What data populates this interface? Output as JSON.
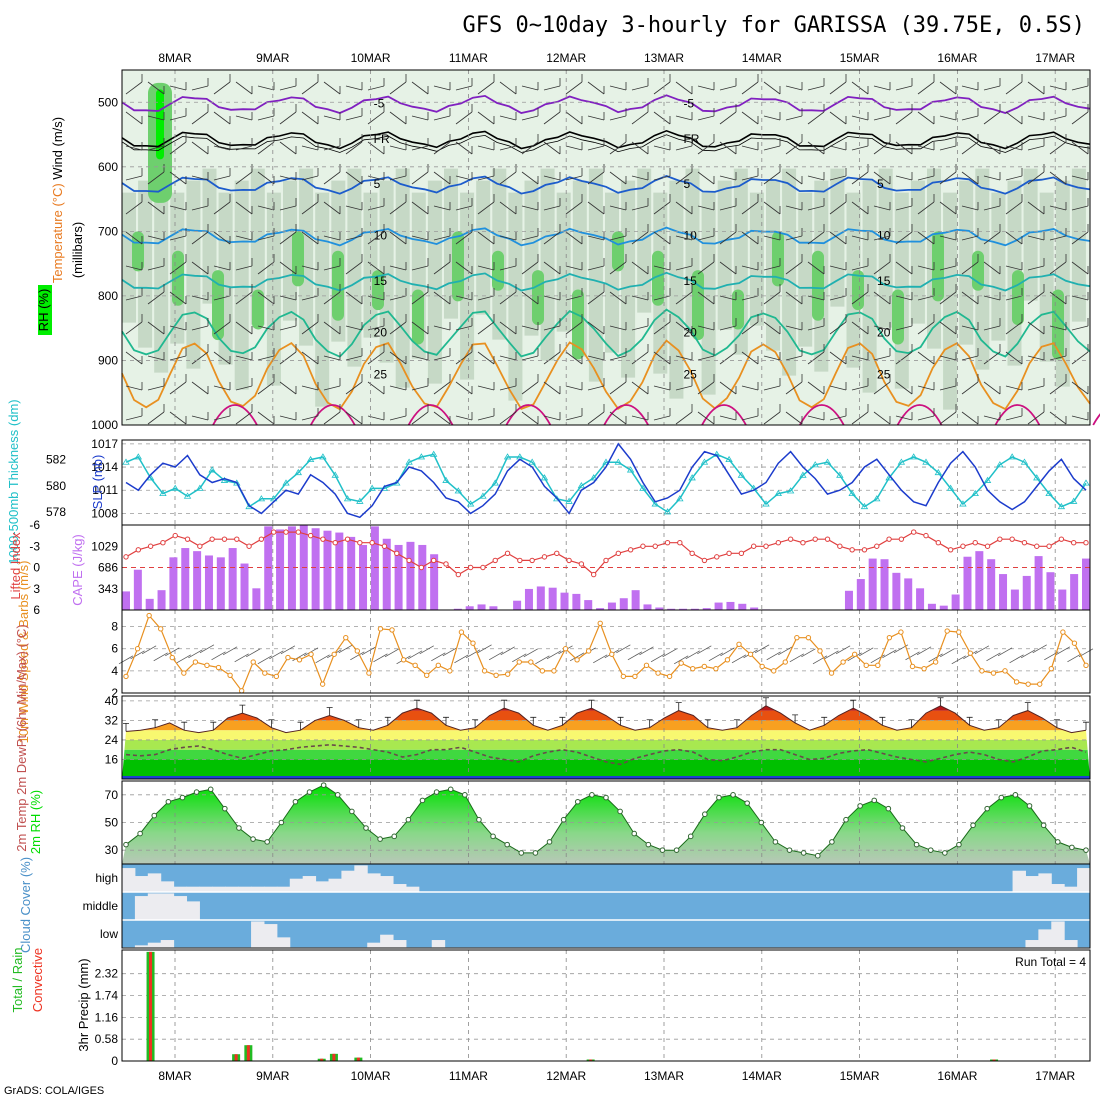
{
  "header": {
    "title": "GFS 0~10day 3-hourly for GARISSA (39.75E, 0.5S)",
    "footer": "GrADS: COLA/IGES"
  },
  "colors": {
    "rh_light": "#e6f2e6",
    "rh_mid": "#c2d6c2",
    "rh_dark": "#6ecf6e",
    "rh_max": "#00ee00",
    "thickness": "#20c0c8",
    "slp": "#1c3ccc",
    "lifted_index": "#e04040",
    "cape": "#c070f0",
    "wind10m": "#e89020",
    "rh2m": "#00dd00",
    "cloud": "#6aacdc",
    "rain_total": "#22bb22",
    "rain_conv": "#ee3322",
    "temp_iso_neg": "#8020c0",
    "temp_iso_0": "#000000",
    "temp_iso_cool": "#1c5ccc",
    "temp_iso_mid": "#20b0b0",
    "temp_iso_warm": "#e89020",
    "temp_iso_hot": "#cc1080"
  },
  "chart_data": [
    {
      "id": "upper_air",
      "type": "heatmap",
      "ylabel_parts": [
        "RH (%)",
        "Temperature (°C)",
        "Wind (m/s)"
      ],
      "ylabel2": "(millibars)",
      "x_top": [
        "8MAR",
        "9MAR",
        "10MAR",
        "11MAR",
        "12MAR",
        "13MAR",
        "14MAR",
        "15MAR",
        "16MAR",
        "17MAR"
      ],
      "y_ticks": [
        "500",
        "600",
        "700",
        "800",
        "900",
        "1000"
      ],
      "ylim": [
        1000,
        450
      ],
      "isotherms": [
        {
          "label": "-5",
          "pressure": 500
        },
        {
          "label": "FR",
          "pressure": 555
        },
        {
          "label": "5",
          "pressure": 625
        },
        {
          "label": "10",
          "pressure": 705
        },
        {
          "label": "15",
          "pressure": 775
        },
        {
          "label": "20",
          "pressure": 855
        },
        {
          "label": "25",
          "pressure": 920
        }
      ]
    },
    {
      "id": "thickness_slp",
      "type": "line",
      "ylabel_left": "1000-500mb Thickness (dm)",
      "ylabel_right": "SLP (mb)",
      "left_ticks": [
        "582",
        "580",
        "578"
      ],
      "right_ticks": [
        "1017",
        "1014",
        "1011",
        "1008"
      ],
      "left_range": [
        577,
        583.5
      ],
      "right_range": [
        1006.5,
        1017.5
      ],
      "series": [
        {
          "name": "1000-500mb Thickness (dm)",
          "values": [
            581.8,
            582.2,
            580.6,
            579.4,
            579.8,
            579.2,
            579.8,
            581.2,
            580.4,
            580.2,
            578.4,
            579.0,
            579.0,
            580.2,
            581.0,
            582.0,
            582.2,
            580.8,
            579.0,
            578.8,
            579.8,
            579.8,
            580.2,
            581.8,
            582.2,
            582.4,
            580.4,
            579.6,
            578.6,
            579.2,
            580.2,
            582.2,
            582.2,
            581.8,
            580.6,
            579.0,
            578.8,
            580.0,
            580.6,
            581.8,
            581.8,
            581.2,
            579.8,
            578.6,
            578.0,
            579.0,
            580.6,
            581.8,
            582.4,
            582.0,
            580.8,
            579.8,
            578.6,
            579.4,
            579.6,
            580.8,
            581.6,
            581.8,
            580.8,
            579.4,
            578.4,
            579.0,
            580.6,
            581.8,
            582.2,
            581.8,
            581.0,
            579.8,
            578.6,
            579.4,
            580.4,
            581.6,
            582.2,
            581.8,
            580.6,
            579.4,
            578.4,
            578.8,
            580.2
          ]
        },
        {
          "name": "SLP (mb)",
          "values": [
            1012.0,
            1011.0,
            1013.0,
            1014.5,
            1014.0,
            1015.5,
            1013.0,
            1012.0,
            1012.5,
            1012.0,
            1009.0,
            1008.0,
            1009.5,
            1011.0,
            1010.5,
            1013.0,
            1012.0,
            1010.5,
            1008.0,
            1007.5,
            1009.0,
            1011.5,
            1012.0,
            1014.0,
            1013.5,
            1012.0,
            1010.0,
            1009.5,
            1008.0,
            1009.0,
            1010.5,
            1013.5,
            1015.0,
            1014.0,
            1011.5,
            1010.0,
            1008.0,
            1011.0,
            1012.0,
            1014.0,
            1017.0,
            1015.0,
            1012.0,
            1009.5,
            1010.0,
            1011.0,
            1014.0,
            1016.0,
            1015.5,
            1013.0,
            1010.5,
            1011.0,
            1012.0,
            1014.5,
            1016.0,
            1014.0,
            1012.5,
            1010.5,
            1011.0,
            1012.0,
            1014.0,
            1015.0,
            1013.0,
            1011.0,
            1009.5,
            1009.0,
            1012.0,
            1014.5,
            1016.0,
            1014.0,
            1011.0,
            1009.5,
            1008.5,
            1009.5,
            1011.5,
            1013.5,
            1015.0,
            1012.5,
            1011.0
          ]
        }
      ]
    },
    {
      "id": "lifted_cape",
      "type": "bar",
      "ylabel_left": "Lifted Index",
      "ylabel_right": "CAPE (J/kg)",
      "left_ticks": [
        "-6",
        "-3",
        "0",
        "3",
        "6"
      ],
      "right_ticks": [
        "1029",
        "686",
        "343"
      ],
      "left_range": [
        6,
        -6
      ],
      "cape_range": [
        0,
        1372
      ],
      "series": [
        {
          "name": "Lifted Index",
          "values": [
            -1.5,
            -2.5,
            -3,
            -3.5,
            -4.5,
            -4,
            -3,
            -4,
            -4,
            -4,
            -3,
            -4,
            -5,
            -5,
            -5,
            -4.5,
            -4,
            -3.5,
            -4,
            -3.5,
            -3.5,
            -3,
            -2,
            -1,
            0,
            -1,
            -0.5,
            1,
            0,
            0,
            -1,
            -2,
            -1,
            -1,
            -1.5,
            -2,
            -1,
            -0.5,
            1,
            -1,
            -2,
            -2.5,
            -3,
            -3,
            -3.5,
            -3.5,
            -2,
            -1,
            -1.5,
            -2,
            -2,
            -3,
            -3,
            -3.5,
            -4,
            -3.5,
            -4,
            -4,
            -3,
            -2.5,
            -2.5,
            -3,
            -4,
            -4,
            -5,
            -4.5,
            -3.5,
            -2.5,
            -3,
            -3.5,
            -3,
            -4,
            -4,
            -3.5,
            -3,
            -3,
            -4,
            -3.5,
            -3.5
          ]
        },
        {
          "name": "CAPE (J/kg)",
          "values": [
            300,
            650,
            180,
            320,
            850,
            1000,
            950,
            880,
            850,
            1000,
            750,
            350,
            1350,
            1300,
            1350,
            1370,
            1320,
            1280,
            1250,
            1180,
            1050,
            1350,
            1150,
            1050,
            1100,
            1050,
            900,
            0,
            20,
            60,
            90,
            60,
            0,
            150,
            340,
            380,
            360,
            280,
            260,
            160,
            30,
            120,
            190,
            320,
            90,
            40,
            20,
            20,
            20,
            30,
            120,
            130,
            100,
            40,
            10,
            0,
            0,
            0,
            0,
            0,
            0,
            310,
            500,
            830,
            820,
            600,
            510,
            350,
            100,
            70,
            250,
            860,
            950,
            820,
            580,
            330,
            550,
            870,
            610,
            330,
            580,
            830
          ]
        }
      ]
    },
    {
      "id": "wind10m",
      "type": "line",
      "ylabel": "10m Wind Speed & Barbs (m/s)",
      "y_ticks": [
        "8",
        "6",
        "4",
        "2"
      ],
      "ylim": [
        2,
        9.5
      ],
      "series": [
        {
          "name": "10m Wind Speed",
          "values": [
            3.5,
            6.0,
            9.0,
            7.8,
            5.2,
            3.8,
            4.8,
            4.5,
            4.3,
            3.6,
            2.2,
            4.8,
            3.8,
            3.5,
            5.2,
            5.0,
            5.5,
            2.8,
            5.5,
            7.0,
            5.8,
            3.8,
            7.8,
            7.7,
            5.0,
            4.5,
            3.6,
            4.5,
            4.0,
            7.5,
            6.5,
            4.0,
            3.6,
            3.7,
            4.8,
            4.8,
            4.0,
            4.0,
            6.0,
            5.0,
            5.8,
            8.3,
            5.5,
            3.5,
            3.5,
            4.5,
            3.8,
            3.5,
            4.7,
            4.2,
            4.4,
            4.2,
            5.0,
            6.4,
            5.5,
            4.4,
            4.0,
            4.8,
            7.0,
            7.0,
            5.8,
            3.8,
            4.8,
            5.5,
            4.5,
            4.5,
            7.0,
            7.5,
            4.4,
            4.2,
            4.8,
            7.6,
            7.5,
            5.6,
            4.0,
            3.8,
            4.0,
            3.0,
            2.8,
            2.8,
            4.2,
            7.5,
            6.5,
            4.5
          ]
        }
      ]
    },
    {
      "id": "temp2m",
      "type": "area",
      "ylabel": "2m Temp 2m DewPt (6hr Min/Max) (°C)",
      "y_ticks": [
        "40",
        "32",
        "24",
        "16"
      ],
      "ylim": [
        8,
        42
      ],
      "series": [
        {
          "name": "2m Temp",
          "values": [
            27.5,
            28,
            29,
            31,
            28,
            27,
            28,
            33,
            35,
            33,
            29,
            27,
            28,
            32,
            34,
            32,
            29,
            28,
            30,
            35,
            37,
            35,
            30,
            28,
            29,
            34,
            37,
            35,
            30,
            28,
            30,
            35,
            37,
            34,
            30,
            28,
            29,
            33,
            36,
            34,
            29,
            28,
            29,
            34,
            38,
            35,
            31,
            28,
            30,
            34,
            37,
            34,
            30,
            28,
            29,
            35,
            38,
            35,
            30,
            28,
            29,
            34,
            36,
            33,
            29,
            27,
            28
          ]
        },
        {
          "name": "2m DewPt",
          "values": [
            18,
            17.5,
            18,
            20,
            21,
            21.5,
            20,
            18,
            16.5,
            18,
            19.5,
            20,
            21,
            21.5,
            22,
            21.5,
            21,
            20,
            19,
            17,
            18,
            20,
            20,
            21,
            19,
            17,
            16,
            15,
            17.5,
            19,
            20,
            19,
            17,
            15,
            14,
            16.5,
            18,
            19.5,
            20,
            19,
            16,
            15.5,
            17,
            19,
            20,
            20,
            18,
            16,
            16.5,
            18.5,
            19.5,
            20,
            18.5,
            17,
            16,
            15,
            16.5,
            18,
            19,
            18,
            16,
            15,
            17,
            19.5,
            20,
            21,
            19
          ]
        }
      ]
    },
    {
      "id": "rh2m",
      "type": "area",
      "ylabel": "2m RH (%)",
      "y_ticks": [
        "70",
        "50",
        "30"
      ],
      "ylim": [
        20,
        80
      ],
      "series": [
        {
          "name": "2m RH",
          "values": [
            34,
            42,
            55,
            65,
            68,
            72,
            74,
            60,
            46,
            38,
            36,
            50,
            65,
            72,
            77,
            70,
            58,
            46,
            38,
            40,
            52,
            66,
            72,
            74,
            70,
            52,
            40,
            34,
            28,
            28,
            36,
            52,
            65,
            70,
            68,
            58,
            42,
            34,
            30,
            30,
            40,
            56,
            68,
            70,
            64,
            50,
            36,
            30,
            28,
            26,
            36,
            52,
            62,
            66,
            60,
            46,
            34,
            30,
            28,
            34,
            48,
            60,
            68,
            70,
            62,
            48,
            36,
            32,
            30
          ]
        }
      ]
    },
    {
      "id": "cloud",
      "type": "bar",
      "ylabel": "Cloud Cover (%)",
      "y_ticks": [
        "high",
        "middle",
        "low"
      ],
      "series": [
        {
          "name": "high",
          "values": [
            90,
            60,
            70,
            40,
            20,
            20,
            20,
            20,
            20,
            20,
            20,
            20,
            20,
            50,
            60,
            40,
            50,
            80,
            100,
            70,
            60,
            30,
            20,
            0,
            0,
            0,
            0,
            0,
            0,
            0,
            0,
            0,
            0,
            0,
            0,
            0,
            0,
            0,
            0,
            0,
            0,
            0,
            0,
            0,
            0,
            0,
            0,
            0,
            0,
            0,
            0,
            0,
            0,
            0,
            0,
            0,
            0,
            0,
            0,
            0,
            0,
            0,
            0,
            0,
            0,
            0,
            0,
            0,
            0,
            80,
            60,
            70,
            30,
            20,
            90
          ]
        },
        {
          "name": "middle",
          "values": [
            0,
            90,
            100,
            100,
            90,
            70,
            0,
            0,
            0,
            0,
            0,
            0,
            0,
            0,
            0,
            0,
            0,
            0,
            0,
            0,
            0,
            0,
            0,
            0,
            0,
            0,
            0,
            0,
            0,
            0,
            0,
            0,
            0,
            0,
            0,
            0,
            0,
            0,
            0,
            0,
            0,
            0,
            0,
            0,
            0,
            0,
            0,
            0,
            0,
            0,
            0,
            0,
            0,
            0,
            0,
            0,
            0,
            0,
            0,
            0,
            0,
            0,
            0,
            0,
            0,
            0,
            0,
            0,
            0,
            0,
            0,
            0,
            0,
            0,
            0
          ]
        },
        {
          "name": "low",
          "values": [
            0,
            10,
            20,
            30,
            0,
            0,
            0,
            0,
            0,
            0,
            100,
            90,
            40,
            0,
            0,
            0,
            0,
            0,
            0,
            20,
            50,
            30,
            0,
            0,
            30,
            0,
            0,
            0,
            0,
            0,
            0,
            0,
            0,
            0,
            0,
            0,
            0,
            0,
            0,
            0,
            0,
            0,
            0,
            0,
            0,
            0,
            0,
            0,
            0,
            0,
            0,
            0,
            0,
            0,
            0,
            0,
            0,
            0,
            0,
            0,
            0,
            0,
            0,
            0,
            0,
            0,
            0,
            0,
            0,
            0,
            30,
            70,
            100,
            30,
            0
          ]
        }
      ]
    },
    {
      "id": "precip",
      "type": "bar",
      "ylabel_parts": [
        "Total / Rain",
        "Convective"
      ],
      "ylabel2": "3hr Precip (mm)",
      "annotation": "Run Total = 4",
      "y_ticks": [
        "2.32",
        "1.74",
        "1.16",
        "0.58",
        "0"
      ],
      "ylim": [
        0,
        2.95
      ],
      "x_bottom": [
        "8MAR",
        "9MAR",
        "10MAR",
        "11MAR",
        "12MAR",
        "13MAR",
        "14MAR",
        "15MAR",
        "16MAR",
        "17MAR"
      ],
      "x": [
        "7MAR18",
        "8MAR15",
        "8MAR18",
        "9MAR12",
        "9MAR15",
        "9MAR21",
        "12MAR06",
        "16MAR09"
      ],
      "series": [
        {
          "name": "Total",
          "values": [
            2.9,
            0.18,
            0.42,
            0.06,
            0.19,
            0.09,
            0.04,
            0.04
          ]
        },
        {
          "name": "Convective",
          "values": [
            2.9,
            0.18,
            0.42,
            0.06,
            0.19,
            0.09,
            0.04,
            0.04
          ]
        }
      ]
    }
  ]
}
